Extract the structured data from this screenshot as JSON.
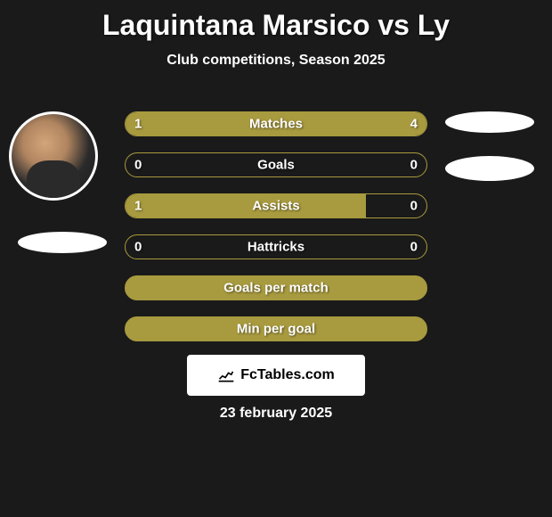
{
  "title": "Laquintana Marsico vs Ly",
  "subtitle": "Club competitions, Season 2025",
  "footer_date": "23 february 2025",
  "branding_text": "FcTables.com",
  "colors": {
    "background": "#1a1a1a",
    "bar_fill": "#a89a3e",
    "bar_border": "#a89a3e",
    "text": "#ffffff",
    "branding_bg": "#ffffff",
    "branding_text": "#000000"
  },
  "stats": [
    {
      "label": "Matches",
      "left_value": "1",
      "right_value": "4",
      "left_pct": 20,
      "right_pct": 80,
      "type": "split"
    },
    {
      "label": "Goals",
      "left_value": "0",
      "right_value": "0",
      "left_pct": 0,
      "right_pct": 0,
      "type": "empty"
    },
    {
      "label": "Assists",
      "left_value": "1",
      "right_value": "0",
      "left_pct": 80,
      "right_pct": 0,
      "type": "split"
    },
    {
      "label": "Hattricks",
      "left_value": "0",
      "right_value": "0",
      "left_pct": 0,
      "right_pct": 0,
      "type": "empty"
    },
    {
      "label": "Goals per match",
      "left_value": "",
      "right_value": "",
      "left_pct": 100,
      "right_pct": 0,
      "type": "full"
    },
    {
      "label": "Min per goal",
      "left_value": "",
      "right_value": "",
      "left_pct": 100,
      "right_pct": 0,
      "type": "full"
    }
  ]
}
